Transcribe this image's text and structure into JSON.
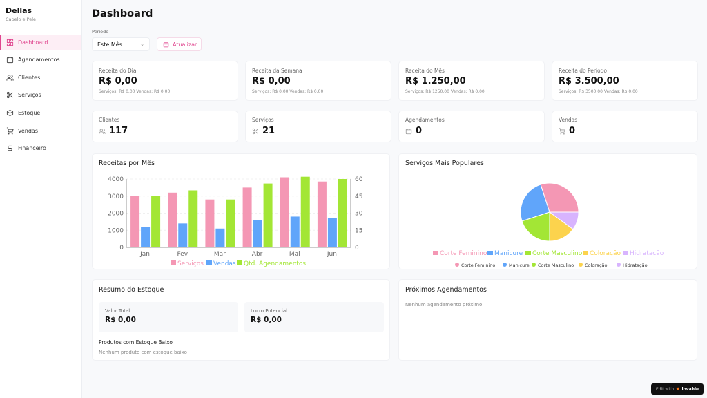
{
  "sidebar": {
    "brand": "Dellas",
    "subtitle": "Cabelo e Pele",
    "items": [
      {
        "label": "Dashboard",
        "icon": "dashboard-icon"
      },
      {
        "label": "Agendamentos",
        "icon": "calendar-icon"
      },
      {
        "label": "Clientes",
        "icon": "users-icon"
      },
      {
        "label": "Serviços",
        "icon": "scissors-icon"
      },
      {
        "label": "Estoque",
        "icon": "package-icon"
      },
      {
        "label": "Vendas",
        "icon": "cart-icon"
      },
      {
        "label": "Financeiro",
        "icon": "dollar-icon"
      }
    ]
  },
  "header": {
    "title": "Dashboard",
    "period_label": "Período",
    "period_value": "Este Mês",
    "refresh_label": "Atualizar"
  },
  "revenue": [
    {
      "label": "Receita do Dia",
      "value": "R$ 0,00",
      "sub": "Serviços: R$ 0.00 Vendas: R$ 0.00"
    },
    {
      "label": "Receita da Semana",
      "value": "R$ 0,00",
      "sub": "Serviços: R$ 0.00 Vendas: R$ 0.00"
    },
    {
      "label": "Receita do Mês",
      "value": "R$ 1.250,00",
      "sub": "Serviços: R$ 1250.00 Vendas: R$ 0.00"
    },
    {
      "label": "Receita do Período",
      "value": "R$ 3.500,00",
      "sub": "Serviços: R$ 3500.00 Vendas: R$ 0.00"
    }
  ],
  "stats": [
    {
      "label": "Clientes",
      "value": "117",
      "icon": "users-icon"
    },
    {
      "label": "Serviços",
      "value": "21",
      "icon": "scissors-icon"
    },
    {
      "label": "Agendamentos",
      "value": "0",
      "icon": "calendar-icon"
    },
    {
      "label": "Vendas",
      "value": "0",
      "icon": "cart-icon"
    }
  ],
  "colors": {
    "accent": "#e0468f",
    "pink": "#f497b4",
    "blue": "#60a5fa",
    "green": "#a3e635",
    "yellow": "#fcd34d",
    "lavender": "#d8b4fe"
  },
  "chart_data": [
    {
      "type": "bar",
      "title": "Receitas por Mês",
      "categories": [
        "Jan",
        "Fev",
        "Mar",
        "Abr",
        "Mai",
        "Jun"
      ],
      "series": [
        {
          "name": "Serviços",
          "axis": "left",
          "values": [
            3000,
            3200,
            2800,
            3500,
            4100,
            3850
          ]
        },
        {
          "name": "Vendas",
          "axis": "left",
          "values": [
            1200,
            1400,
            1100,
            1600,
            1800,
            1700
          ]
        },
        {
          "name": "Qtd. Agendamentos",
          "axis": "right",
          "values": [
            45,
            50,
            42,
            56,
            62,
            60
          ]
        }
      ],
      "ylim": [
        0,
        4000
      ],
      "yticks": [
        "0",
        "1000",
        "2000",
        "3000",
        "4000"
      ],
      "y2lim": [
        0,
        60
      ],
      "y2ticks": [
        "0",
        "15",
        "30",
        "45",
        "60"
      ],
      "legend": "bottom"
    },
    {
      "type": "pie",
      "title": "Serviços Mais Populares",
      "categories": [
        "Corte Feminino",
        "Manicure",
        "Corte Masculino",
        "Coloração",
        "Hidratação"
      ],
      "values": [
        30,
        25,
        20,
        15,
        10
      ],
      "legend": "bottom"
    }
  ],
  "stock": {
    "title": "Resumo do Estoque",
    "total_label": "Valor Total",
    "total_value": "R$ 0,00",
    "profit_label": "Lucro Potencial",
    "profit_value": "R$ 0,00",
    "low_title": "Produtos com Estoque Baixo",
    "low_empty": "Nenhum produto com estoque baixo"
  },
  "upcoming": {
    "title": "Próximos Agendamentos",
    "empty": "Nenhum agendamento próximo"
  },
  "badge": {
    "label": "Edit with",
    "brand": "lovable"
  }
}
